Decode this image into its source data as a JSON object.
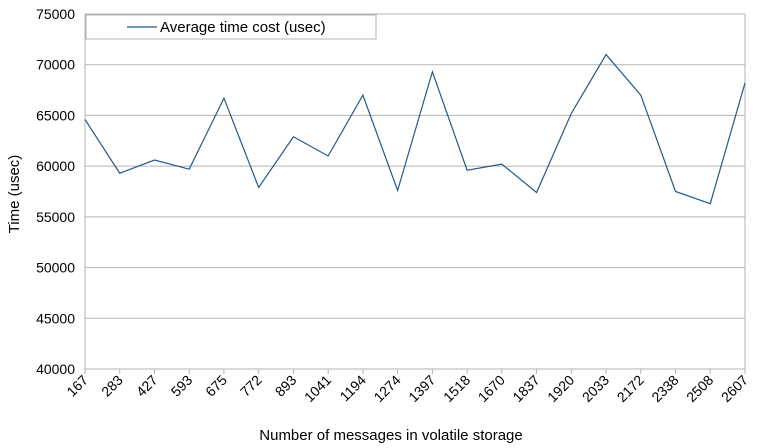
{
  "chart_data": {
    "type": "line",
    "title": "",
    "xlabel": "Number of messages in volatile storage",
    "ylabel": "Time (usec)",
    "ylim": [
      40000,
      75000
    ],
    "yticks": [
      40000,
      45000,
      50000,
      55000,
      60000,
      65000,
      70000,
      75000
    ],
    "grid": true,
    "legend_position": "top-left",
    "categories": [
      "167",
      "283",
      "427",
      "593",
      "675",
      "772",
      "893",
      "1041",
      "1194",
      "1274",
      "1397",
      "1518",
      "1670",
      "1837",
      "1920",
      "2033",
      "2172",
      "2338",
      "2508",
      "2607"
    ],
    "series": [
      {
        "name": "Average time cost (usec)",
        "color": "#1f5a8c",
        "values": [
          64600,
          59300,
          60600,
          59700,
          66700,
          57900,
          62900,
          61000,
          67000,
          57600,
          69300,
          59600,
          60200,
          57400,
          65200,
          71000,
          67000,
          57500,
          56300,
          68200
        ]
      }
    ]
  }
}
